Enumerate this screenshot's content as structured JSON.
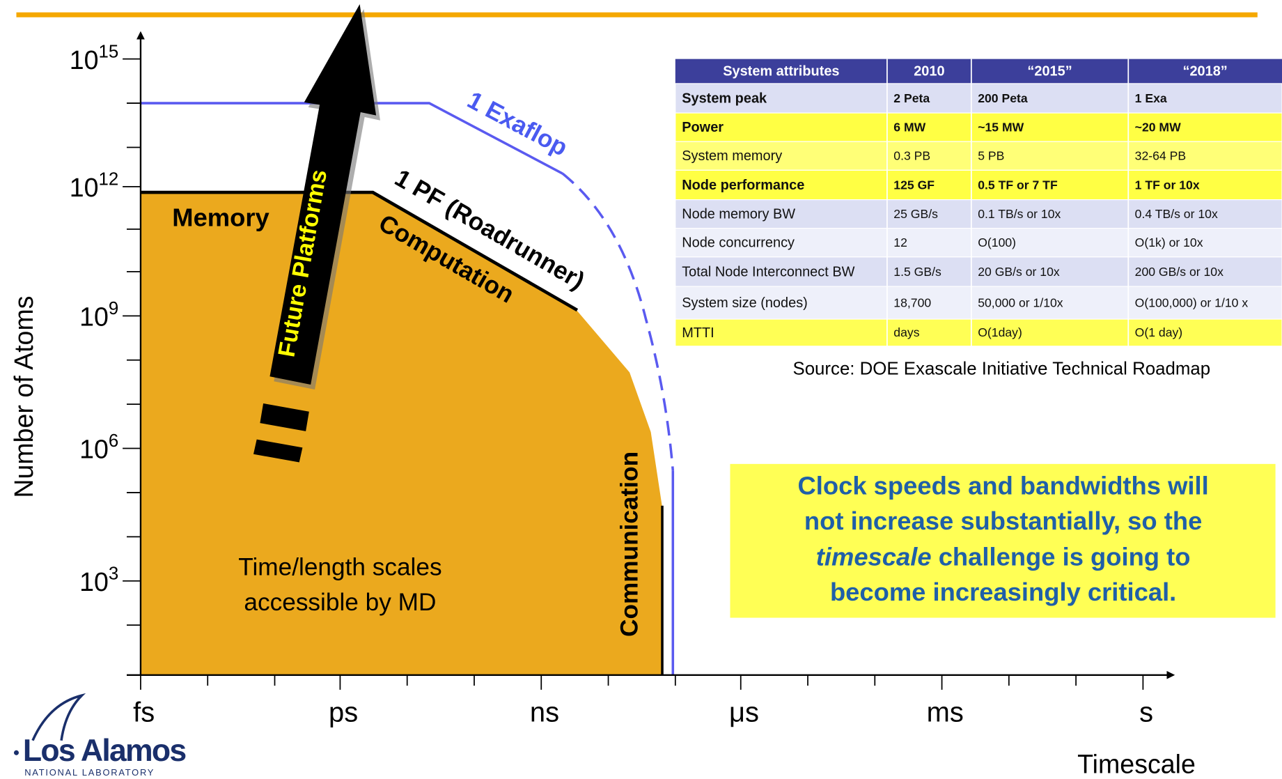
{
  "y_axis": {
    "label": "Number of Atoms",
    "ticks": [
      {
        "base": "10",
        "exp": "15"
      },
      {
        "base": "10",
        "exp": "12"
      },
      {
        "base": "10",
        "exp": "9"
      },
      {
        "base": "10",
        "exp": "6"
      },
      {
        "base": "10",
        "exp": "3"
      }
    ]
  },
  "x_axis": {
    "label": "Timescale",
    "ticks": [
      "fs",
      "ps",
      "ns",
      "μs",
      "ms",
      "s"
    ]
  },
  "labels": {
    "memory": "Memory",
    "computation": "Computation",
    "communication": "Communication",
    "pf": "1 PF (Roadrunner)",
    "exaflop": "1 Exaflop",
    "future": "Future Platforms",
    "md_line1": "Time/length scales",
    "md_line2": "accessible by MD"
  },
  "table": {
    "header": [
      "System attributes",
      "2010",
      "“2015”",
      "“2018”"
    ],
    "rows": [
      [
        "System peak",
        "2 Peta",
        "200 Peta",
        "1 Exa"
      ],
      [
        "Power",
        "6 MW",
        "~15 MW",
        "~20 MW"
      ],
      [
        "System memory",
        "0.3 PB",
        "5 PB",
        "32-64 PB"
      ],
      [
        "Node performance",
        "125 GF",
        "0.5 TF or 7 TF",
        "1 TF or 10x"
      ],
      [
        "Node memory BW",
        "25 GB/s",
        "0.1 TB/s or 10x",
        "0.4 TB/s or 10x"
      ],
      [
        "Node concurrency",
        "12",
        "O(100)",
        "O(1k) or 10x"
      ],
      [
        "Total Node Interconnect BW",
        "1.5 GB/s",
        "20 GB/s or 10x",
        "200 GB/s or 10x"
      ],
      [
        "System size (nodes)",
        "18,700",
        "50,000 or 1/10x",
        "O(100,000) or 1/10 x"
      ],
      [
        "MTTI",
        "days",
        "O(1day)",
        "O(1 day)"
      ]
    ],
    "source": "Source: DOE Exascale Initiative Technical Roadmap"
  },
  "callout": {
    "line1": "Clock speeds and bandwidths will",
    "line2": "not increase substantially, so the",
    "line3_italic": "timescale",
    "line3_rest": " challenge is going to",
    "line4": "become increasingly critical."
  },
  "logo": {
    "name": "Los Alamos",
    "sub": "NATIONAL LABORATORY"
  }
}
